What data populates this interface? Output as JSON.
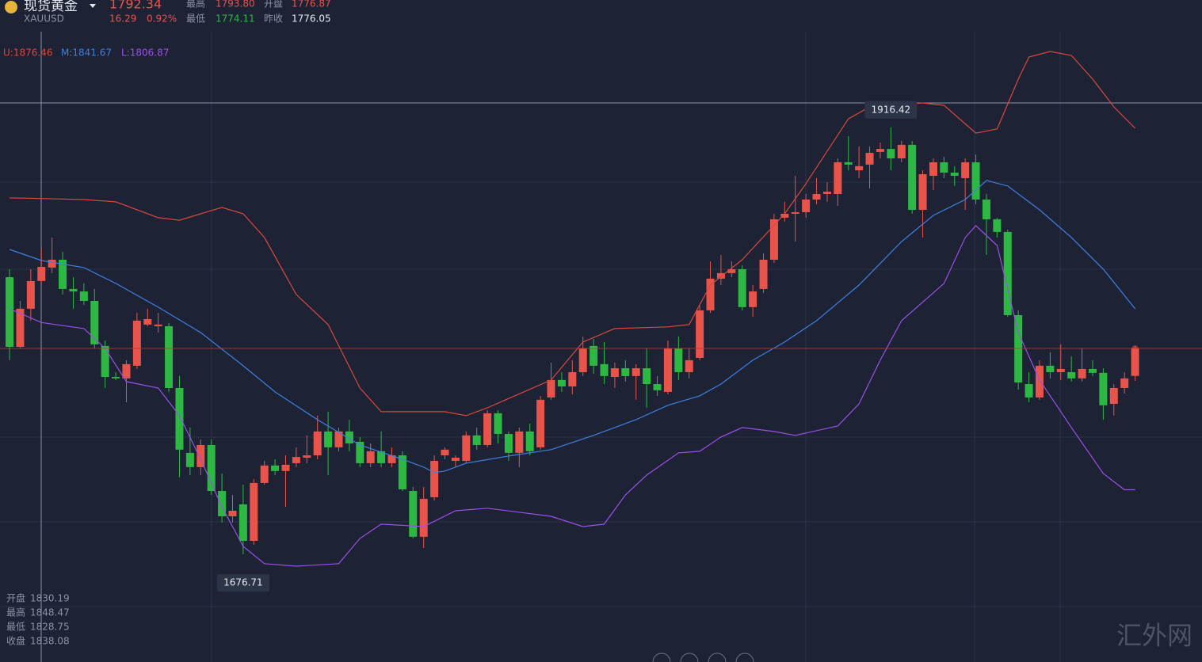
{
  "header": {
    "name": "现货黄金",
    "symbol": "XAUUSD",
    "price": "1792.34",
    "change": "16.29",
    "change_pct": "0.92%",
    "high_label": "最高",
    "high": "1793.80",
    "open_label": "开盘",
    "open": "1776.87",
    "low_label": "最低",
    "low": "1774.11",
    "prev_close_label": "昨收",
    "prev_close": "1776.05"
  },
  "ohlc_panel": [
    {
      "label": "开盘",
      "value": "1830.19"
    },
    {
      "label": "最高",
      "value": "1848.47"
    },
    {
      "label": "最低",
      "value": "1828.75"
    },
    {
      "label": "收盘",
      "value": "1838.08"
    }
  ],
  "watermark": "汇外网",
  "chart_data": {
    "type": "candlestick",
    "up_color": "#e8534a",
    "down_color": "#2db843",
    "xlim": [
      -0.9,
      112.3
    ],
    "ylim": [
      1616.3,
      1987.9
    ],
    "open": [
      1832.3,
      1793.2,
      1814.6,
      1830.19,
      1837.7,
      1842.1,
      1825.7,
      1824.3,
      1819.0,
      1793.7,
      1776.3,
      1775.5,
      1782.6,
      1805.7,
      1804.8,
      1804.8,
      1770.1,
      1733.7,
      1725.7,
      1738.1,
      1712.3,
      1698.1,
      1704.8,
      1684.3,
      1716.8,
      1726.6,
      1723.5,
      1727.9,
      1731.0,
      1732.3,
      1745.7,
      1736.8,
      1745.7,
      1739.9,
      1727.9,
      1734.6,
      1727.9,
      1732.3,
      1712.3,
      1686.6,
      1708.8,
      1732.3,
      1729.2,
      1729.2,
      1743.5,
      1738.1,
      1755.9,
      1744.3,
      1733.7,
      1745.7,
      1736.8,
      1764.8,
      1774.6,
      1771.0,
      1779.0,
      1793.7,
      1783.5,
      1776.3,
      1781.2,
      1776.8,
      1781.2,
      1772.3,
      1767.9,
      1792.3,
      1779.0,
      1787.0,
      1813.7,
      1831.5,
      1834.6,
      1836.8,
      1815.5,
      1825.7,
      1842.1,
      1865.7,
      1867.9,
      1868.8,
      1875.9,
      1879.0,
      1879.0,
      1896.8,
      1892.3,
      1895.5,
      1902.6,
      1904.3,
      1899.0,
      1906.6,
      1870.1,
      1889.2,
      1896.8,
      1891.0,
      1887.9,
      1896.8,
      1875.9,
      1864.8,
      1857.7,
      1811.0,
      1772.3,
      1764.8,
      1782.6,
      1779.0,
      1779.0,
      1775.5,
      1780.8,
      1778.6,
      1761.2,
      1770.1,
      1776.87
    ],
    "high": [
      1836.8,
      1819.0,
      1836.8,
      1848.47,
      1854.6,
      1846.6,
      1832.3,
      1828.8,
      1825.7,
      1796.8,
      1779.0,
      1785.7,
      1812.3,
      1814.6,
      1812.3,
      1806.6,
      1776.8,
      1747.9,
      1741.2,
      1741.2,
      1722.1,
      1710.1,
      1715.9,
      1719.0,
      1729.2,
      1730.1,
      1732.3,
      1736.8,
      1743.5,
      1754.6,
      1756.8,
      1747.9,
      1752.3,
      1742.6,
      1739.0,
      1745.7,
      1736.8,
      1734.6,
      1714.6,
      1714.6,
      1732.3,
      1736.8,
      1732.3,
      1745.7,
      1747.9,
      1757.7,
      1757.7,
      1745.7,
      1747.9,
      1750.1,
      1765.7,
      1784.3,
      1779.0,
      1785.7,
      1799.0,
      1797.7,
      1795.9,
      1784.3,
      1785.7,
      1783.5,
      1792.3,
      1776.8,
      1796.8,
      1799.0,
      1792.3,
      1816.8,
      1841.2,
      1844.8,
      1841.2,
      1839.0,
      1827.9,
      1845.7,
      1867.9,
      1874.6,
      1889.2,
      1879.0,
      1887.9,
      1885.7,
      1899.0,
      1911.5,
      1905.7,
      1905.7,
      1907.9,
      1916.42,
      1908.8,
      1908.8,
      1892.3,
      1899.0,
      1899.9,
      1894.6,
      1899.0,
      1901.2,
      1879.0,
      1865.7,
      1859.0,
      1813.7,
      1779.0,
      1785.7,
      1790.1,
      1794.6,
      1787.9,
      1792.3,
      1785.7,
      1781.2,
      1772.3,
      1779.0,
      1793.8
    ],
    "low": [
      1785.7,
      1792.3,
      1807.9,
      1828.75,
      1834.6,
      1822.6,
      1814.6,
      1816.8,
      1792.3,
      1770.1,
      1774.6,
      1762.1,
      1780.8,
      1804.8,
      1801.2,
      1767.9,
      1719.9,
      1721.2,
      1721.2,
      1710.1,
      1694.6,
      1694.6,
      1676.71,
      1682.1,
      1715.9,
      1721.2,
      1703.4,
      1725.7,
      1727.9,
      1730.1,
      1721.2,
      1734.6,
      1734.6,
      1725.7,
      1725.7,
      1725.7,
      1725.7,
      1712.3,
      1685.7,
      1680.3,
      1707.0,
      1730.1,
      1725.7,
      1727.9,
      1735.5,
      1736.8,
      1739.0,
      1729.2,
      1725.7,
      1732.3,
      1735.5,
      1763.5,
      1767.9,
      1766.6,
      1776.8,
      1778.1,
      1772.3,
      1770.1,
      1773.7,
      1763.5,
      1759.0,
      1765.7,
      1766.6,
      1774.6,
      1775.5,
      1785.7,
      1812.3,
      1827.9,
      1832.3,
      1813.7,
      1810.1,
      1823.4,
      1840.3,
      1863.5,
      1852.3,
      1865.7,
      1873.2,
      1874.6,
      1872.3,
      1892.3,
      1887.9,
      1882.1,
      1899.0,
      1892.3,
      1896.8,
      1867.9,
      1854.6,
      1881.2,
      1887.9,
      1883.5,
      1870.1,
      1873.2,
      1844.8,
      1854.6,
      1810.1,
      1769.2,
      1762.1,
      1763.5,
      1775.5,
      1774.6,
      1773.7,
      1773.7,
      1776.8,
      1752.3,
      1754.6,
      1767.0,
      1774.11
    ],
    "close": [
      1793.2,
      1814.6,
      1830.1,
      1838.08,
      1842.1,
      1825.7,
      1824.3,
      1819.0,
      1794.6,
      1776.3,
      1775.5,
      1783.5,
      1807.9,
      1808.8,
      1805.7,
      1770.1,
      1735.5,
      1725.7,
      1738.1,
      1712.3,
      1698.1,
      1701.2,
      1684.3,
      1716.8,
      1726.6,
      1723.5,
      1727.0,
      1731.4,
      1732.3,
      1745.7,
      1736.8,
      1745.7,
      1739.0,
      1727.9,
      1734.6,
      1727.9,
      1732.3,
      1713.2,
      1686.6,
      1707.9,
      1729.2,
      1735.5,
      1731.0,
      1743.5,
      1738.1,
      1755.9,
      1744.3,
      1733.7,
      1745.7,
      1734.6,
      1763.5,
      1774.6,
      1771.0,
      1779.0,
      1792.3,
      1782.6,
      1776.8,
      1781.2,
      1776.8,
      1781.2,
      1772.3,
      1768.8,
      1792.3,
      1779.0,
      1785.7,
      1813.7,
      1831.5,
      1834.6,
      1836.8,
      1815.5,
      1824.3,
      1842.1,
      1864.8,
      1867.9,
      1868.8,
      1875.9,
      1879.0,
      1880.3,
      1896.8,
      1895.5,
      1894.6,
      1902.1,
      1904.3,
      1899.0,
      1906.6,
      1870.1,
      1890.1,
      1896.8,
      1891.0,
      1889.2,
      1896.8,
      1875.9,
      1864.8,
      1857.7,
      1811.0,
      1773.2,
      1764.8,
      1782.6,
      1779.0,
      1780.8,
      1775.5,
      1780.8,
      1778.6,
      1760.4,
      1770.1,
      1775.5,
      1792.34
    ],
    "bands": [
      {
        "value_label": "U:1876.46",
        "color": "#d9483b",
        "x": [
          0,
          3,
          7,
          10,
          14,
          16,
          18,
          20,
          22,
          24,
          27,
          30,
          33,
          35,
          41,
          43,
          45,
          51,
          54,
          57,
          62,
          64,
          66,
          69,
          73,
          75,
          79,
          81,
          86,
          88,
          91,
          93,
          95,
          96,
          98,
          100,
          102,
          104,
          106
        ],
        "values": [
          1876.8,
          1876.46,
          1875.9,
          1874.6,
          1865.7,
          1864.3,
          1867.9,
          1871.5,
          1867.9,
          1854.6,
          1822.6,
          1805.7,
          1770.1,
          1756.8,
          1756.8,
          1754.6,
          1759.0,
          1774.6,
          1795.9,
          1803.5,
          1804.4,
          1805.7,
          1827.9,
          1842.1,
          1867.9,
          1884.8,
          1921.2,
          1927.9,
          1930.1,
          1928.8,
          1913.2,
          1915.5,
          1943.5,
          1955.9,
          1959.0,
          1956.8,
          1943.5,
          1927.9,
          1915.9
        ]
      },
      {
        "value_label": "M:1841.67",
        "color": "#3f7fe0",
        "x": [
          0,
          3,
          7,
          10,
          14,
          18,
          22,
          25,
          29,
          33,
          37,
          39,
          40,
          41,
          43,
          47,
          51,
          55,
          59,
          62,
          65,
          67,
          70,
          73,
          76,
          80,
          84,
          87,
          90,
          92,
          94,
          97,
          100,
          103,
          106
        ],
        "values": [
          1847.9,
          1841.67,
          1837.7,
          1828.8,
          1815.5,
          1801.2,
          1782.6,
          1767.9,
          1752.3,
          1738.1,
          1730.1,
          1725.7,
          1722.6,
          1723.5,
          1727.9,
          1731.9,
          1735.5,
          1743.5,
          1752.3,
          1760.4,
          1765.7,
          1772.3,
          1785.7,
          1795.9,
          1807.9,
          1827.9,
          1852.3,
          1867.0,
          1875.9,
          1886.6,
          1883.5,
          1870.1,
          1854.6,
          1836.8,
          1814.6
        ]
      },
      {
        "value_label": "L:1806.87",
        "color": "#9b4fe8",
        "x": [
          0,
          3,
          7,
          9,
          11,
          14,
          16,
          18,
          20,
          22,
          24,
          27,
          31,
          33,
          35,
          39,
          42,
          45,
          51,
          54,
          56,
          58,
          60,
          63,
          65,
          67,
          69,
          72,
          74,
          78,
          80,
          82,
          84,
          88,
          90,
          91,
          93,
          95,
          97,
          100,
          103,
          105,
          106
        ],
        "values": [
          1814.6,
          1806.87,
          1803.5,
          1792.3,
          1773.7,
          1770.1,
          1754.6,
          1730.1,
          1703.4,
          1681.2,
          1671.5,
          1670.1,
          1671.5,
          1685.7,
          1693.7,
          1692.3,
          1701.2,
          1702.6,
          1698.1,
          1692.3,
          1693.7,
          1710.1,
          1721.2,
          1733.7,
          1734.6,
          1742.6,
          1747.9,
          1745.7,
          1743.5,
          1748.8,
          1761.2,
          1785.7,
          1807.9,
          1828.8,
          1854.6,
          1861.2,
          1850.1,
          1801.2,
          1774.6,
          1747.9,
          1722.1,
          1713.0,
          1713.0
        ]
      }
    ]
  }
}
